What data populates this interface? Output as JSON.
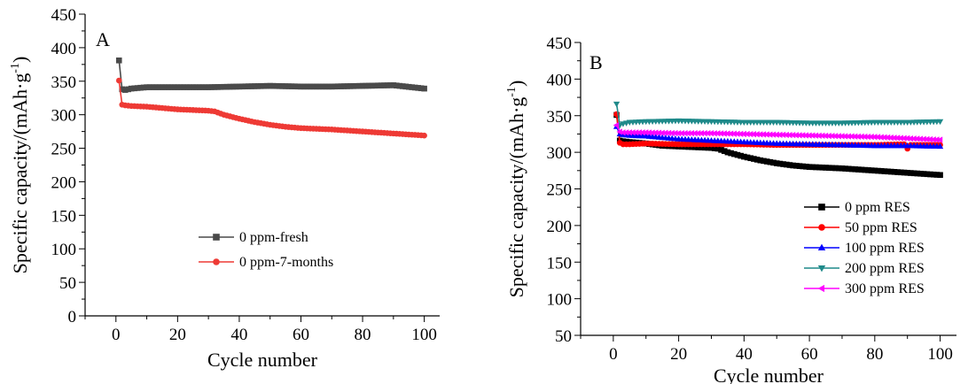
{
  "chart_data": [
    {
      "type": "line",
      "panel_label": "A",
      "xlabel": "Cycle number",
      "ylabel_main": "Specific capacity/(mAh·g",
      "ylabel_sup": "-1",
      "ylabel_end": ")",
      "xlim": [
        -10,
        105
      ],
      "ylim": [
        0,
        450
      ],
      "xticks": [
        0,
        20,
        40,
        60,
        80,
        100
      ],
      "yticks": [
        0,
        50,
        100,
        150,
        200,
        250,
        300,
        350,
        400,
        450
      ],
      "legend_position": "center-right",
      "series": [
        {
          "name": "0 ppm-fresh",
          "color": "#4a4a4a",
          "marker": "square",
          "x": [
            1,
            2,
            3,
            5,
            10,
            15,
            20,
            30,
            40,
            50,
            60,
            70,
            80,
            90,
            100
          ],
          "y": [
            381,
            338,
            337,
            339,
            341,
            341,
            341,
            341,
            342,
            343,
            342,
            342,
            343,
            344,
            339
          ]
        },
        {
          "name": "0 ppm-7-months",
          "color": "#ee3a35",
          "marker": "circle",
          "x": [
            1,
            2,
            3,
            5,
            10,
            15,
            20,
            25,
            30,
            32,
            35,
            40,
            45,
            50,
            55,
            60,
            70,
            80,
            90,
            100
          ],
          "y": [
            351,
            315,
            314,
            313,
            312,
            310,
            308,
            307,
            306,
            305,
            300,
            294,
            289,
            285,
            282,
            280,
            278,
            275,
            272,
            269
          ]
        }
      ]
    },
    {
      "type": "line",
      "panel_label": "B",
      "xlabel": "Cycle number",
      "ylabel_main": "Specific capacity/(mAh·g",
      "ylabel_sup": "-1",
      "ylabel_end": ")",
      "xlim": [
        -10,
        105
      ],
      "ylim": [
        50,
        450
      ],
      "xticks": [
        0,
        20,
        40,
        60,
        80,
        100
      ],
      "yticks": [
        50,
        100,
        150,
        200,
        250,
        300,
        350,
        400,
        450
      ],
      "legend_position": "lower-right",
      "series": [
        {
          "name": "0 ppm RES",
          "color": "#000000",
          "marker": "square",
          "x": [
            1,
            2,
            3,
            5,
            10,
            15,
            20,
            25,
            30,
            32,
            35,
            40,
            45,
            50,
            55,
            60,
            70,
            80,
            90,
            100
          ],
          "y": [
            351,
            316,
            315,
            314,
            312,
            309,
            308,
            307,
            306,
            305,
            300,
            294,
            289,
            285,
            282,
            280,
            278,
            275,
            272,
            269
          ]
        },
        {
          "name": "50 ppm RES",
          "color": "#ff0000",
          "marker": "circle",
          "x": [
            1,
            2,
            3,
            5,
            10,
            20,
            30,
            40,
            50,
            60,
            70,
            80,
            89,
            90,
            91,
            100
          ],
          "y": [
            352,
            313,
            311,
            311,
            312,
            311,
            311,
            311,
            310,
            310,
            310,
            310,
            311,
            305,
            310,
            310
          ]
        },
        {
          "name": "100 ppm RES",
          "color": "#0000ff",
          "marker": "triangle-up",
          "x": [
            1,
            2,
            3,
            5,
            10,
            20,
            30,
            40,
            50,
            60,
            70,
            80,
            90,
            100
          ],
          "y": [
            335,
            325,
            324,
            323,
            322,
            318,
            316,
            314,
            312,
            311,
            310,
            309,
            309,
            308
          ]
        },
        {
          "name": "200 ppm RES",
          "color": "#1f8a8a",
          "marker": "triangle-down",
          "x": [
            1,
            2,
            3,
            5,
            10,
            20,
            30,
            40,
            50,
            60,
            70,
            80,
            90,
            100
          ],
          "y": [
            366,
            337,
            339,
            341,
            342,
            343,
            342,
            341,
            341,
            340,
            340,
            341,
            341,
            342
          ]
        },
        {
          "name": "300 ppm RES",
          "color": "#ff00ff",
          "marker": "triangle-left",
          "x": [
            1,
            2,
            3,
            5,
            10,
            20,
            30,
            40,
            50,
            60,
            70,
            80,
            90,
            100
          ],
          "y": [
            337,
            328,
            327,
            327,
            327,
            326,
            326,
            325,
            324,
            323,
            322,
            321,
            319,
            317
          ]
        }
      ]
    }
  ]
}
